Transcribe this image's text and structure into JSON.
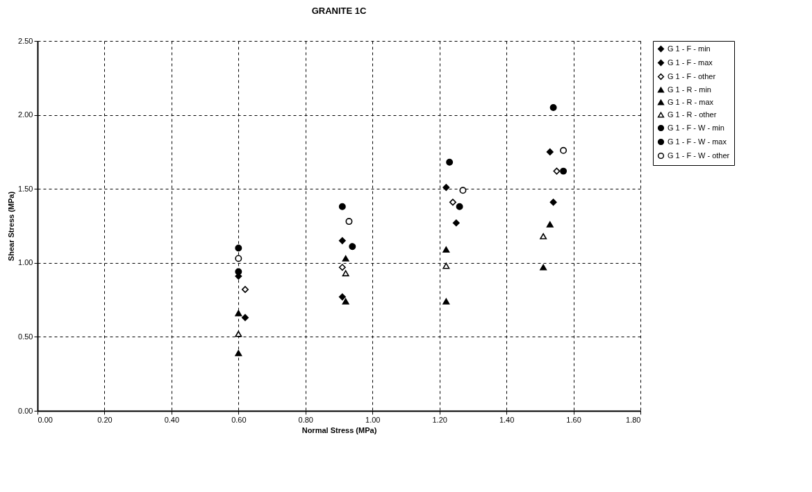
{
  "chart_data": {
    "type": "scatter",
    "title": "GRANITE 1C",
    "xlabel": "Normal Stress (MPa)",
    "ylabel": "Shear Stress (MPa)",
    "xlim": [
      0,
      1.8
    ],
    "ylim": [
      0,
      2.5
    ],
    "xticks": [
      {
        "value": 0,
        "label": "0.00"
      },
      {
        "value": 0.2,
        "label": "0.20"
      },
      {
        "value": 0.4,
        "label": "0.40"
      },
      {
        "value": 0.6,
        "label": "0.60"
      },
      {
        "value": 0.8,
        "label": "0.80"
      },
      {
        "value": 1,
        "label": "1.00"
      },
      {
        "value": 1.2,
        "label": "1.20"
      },
      {
        "value": 1.4,
        "label": "1.40"
      },
      {
        "value": 1.6,
        "label": "1.60"
      },
      {
        "value": 1.8,
        "label": "1.80"
      }
    ],
    "yticks": [
      {
        "value": 0,
        "label": "0.00"
      },
      {
        "value": 0.5,
        "label": "0.50"
      },
      {
        "value": 1,
        "label": "1.00"
      },
      {
        "value": 1.5,
        "label": "1.50"
      },
      {
        "value": 2,
        "label": "2.00"
      },
      {
        "value": 2.5,
        "label": "2.50"
      }
    ],
    "grid": true,
    "legend": "right",
    "series": [
      {
        "name": "G 1 - F - min",
        "color": "#000000",
        "marker": "diamond",
        "x": [
          0.62,
          0.91,
          1.25,
          1.54
        ],
        "values": [
          0.63,
          0.77,
          1.27,
          1.41
        ]
      },
      {
        "name": "G 1 - F - max",
        "color": "#000000",
        "marker": "diamond",
        "x": [
          0.6,
          0.91,
          1.22,
          1.53
        ],
        "values": [
          0.91,
          1.15,
          1.51,
          1.75
        ]
      },
      {
        "name": "G 1 - F - other",
        "color": "#ffffff",
        "marker": "diamond",
        "x": [
          0.62,
          0.91,
          1.24,
          1.55
        ],
        "values": [
          0.82,
          0.97,
          1.41,
          1.62
        ]
      },
      {
        "name": "G 1 - R - min",
        "color": "#000000",
        "marker": "triangle",
        "x": [
          0.6,
          0.92,
          1.22,
          1.51
        ],
        "values": [
          0.39,
          0.74,
          0.74,
          0.97
        ]
      },
      {
        "name": "G 1 - R - max",
        "color": "#000000",
        "marker": "triangle",
        "x": [
          0.6,
          0.92,
          1.22,
          1.53
        ],
        "values": [
          0.66,
          1.03,
          1.09,
          1.26
        ]
      },
      {
        "name": "G 1 - R - other",
        "color": "#ffffff",
        "marker": "triangle",
        "x": [
          0.6,
          0.92,
          1.22,
          1.51
        ],
        "values": [
          0.52,
          0.93,
          0.98,
          1.18
        ]
      },
      {
        "name": "G 1 - F - W - min",
        "color": "#000000",
        "marker": "circle",
        "x": [
          0.6,
          0.94,
          1.26,
          1.57
        ],
        "values": [
          0.94,
          1.11,
          1.38,
          1.62
        ]
      },
      {
        "name": "G 1 - F - W - max",
        "color": "#000000",
        "marker": "circle",
        "x": [
          0.6,
          0.91,
          1.23,
          1.54
        ],
        "values": [
          1.1,
          1.38,
          1.68,
          2.05
        ]
      },
      {
        "name": "G 1 - F - W - other",
        "color": "#ffffff",
        "marker": "circle",
        "x": [
          0.6,
          0.93,
          1.27,
          1.57
        ],
        "values": [
          1.03,
          1.28,
          1.49,
          1.76
        ]
      }
    ]
  }
}
